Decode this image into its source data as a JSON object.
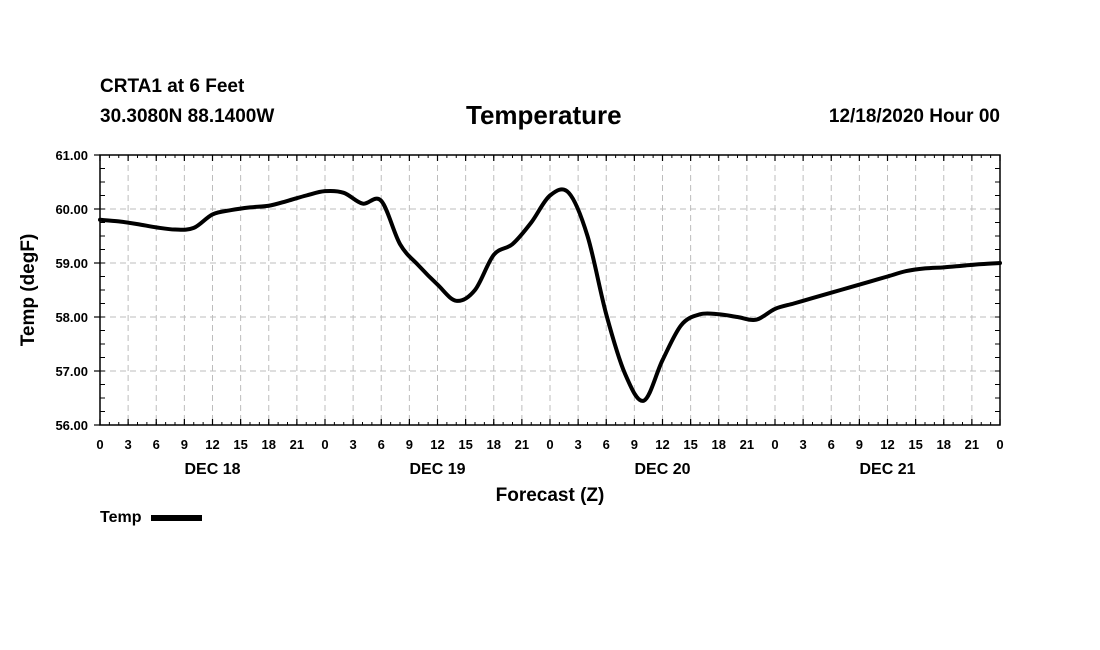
{
  "header": {
    "station": "CRTA1 at 6 Feet",
    "coords": "30.3080N 88.1400W",
    "title": "Temperature",
    "date_hour": "12/18/2020 Hour 00"
  },
  "legend": {
    "label": "Temp"
  },
  "chart_data": {
    "type": "line",
    "title": "Temperature",
    "xlabel": "Forecast (Z)",
    "ylabel": "Temp (degF)",
    "ylim": [
      56.0,
      61.0
    ],
    "y_ticks": [
      "56.00",
      "57.00",
      "58.00",
      "59.00",
      "60.00",
      "61.00"
    ],
    "xlim_hours": [
      0,
      96
    ],
    "x_tick_labels": [
      "0",
      "3",
      "6",
      "9",
      "12",
      "15",
      "18",
      "21",
      "0",
      "3",
      "6",
      "9",
      "12",
      "15",
      "18",
      "21",
      "0",
      "3",
      "6",
      "9",
      "12",
      "15",
      "18",
      "21",
      "0",
      "3",
      "6",
      "9",
      "12",
      "15",
      "18",
      "21",
      "0"
    ],
    "day_labels": [
      "DEC 18",
      "DEC 19",
      "DEC 20",
      "DEC 21"
    ],
    "grid": true,
    "legend_position": "bottom-left",
    "series": [
      {
        "name": "Temp",
        "x_hours": [
          0,
          2,
          4,
          6,
          8,
          10,
          12,
          14,
          16,
          18,
          20,
          22,
          24,
          26,
          28,
          30,
          32,
          34,
          36,
          38,
          40,
          42,
          44,
          46,
          48,
          50,
          52,
          54,
          56,
          58,
          60,
          62,
          64,
          66,
          68,
          70,
          72,
          74,
          76,
          78,
          80,
          82,
          84,
          86,
          88,
          90,
          92,
          94,
          96
        ],
        "values": [
          59.8,
          59.77,
          59.72,
          59.66,
          59.62,
          59.65,
          59.9,
          59.98,
          60.03,
          60.06,
          60.15,
          60.25,
          60.33,
          60.3,
          60.1,
          60.15,
          59.35,
          58.95,
          58.6,
          58.3,
          58.5,
          59.15,
          59.35,
          59.75,
          60.25,
          60.3,
          59.5,
          58.05,
          56.95,
          56.45,
          57.2,
          57.85,
          58.05,
          58.05,
          58.0,
          57.95,
          58.15,
          58.25,
          58.35,
          58.45,
          58.55,
          58.65,
          58.75,
          58.85,
          58.9,
          58.92,
          58.95,
          58.98,
          59.0
        ]
      }
    ]
  }
}
